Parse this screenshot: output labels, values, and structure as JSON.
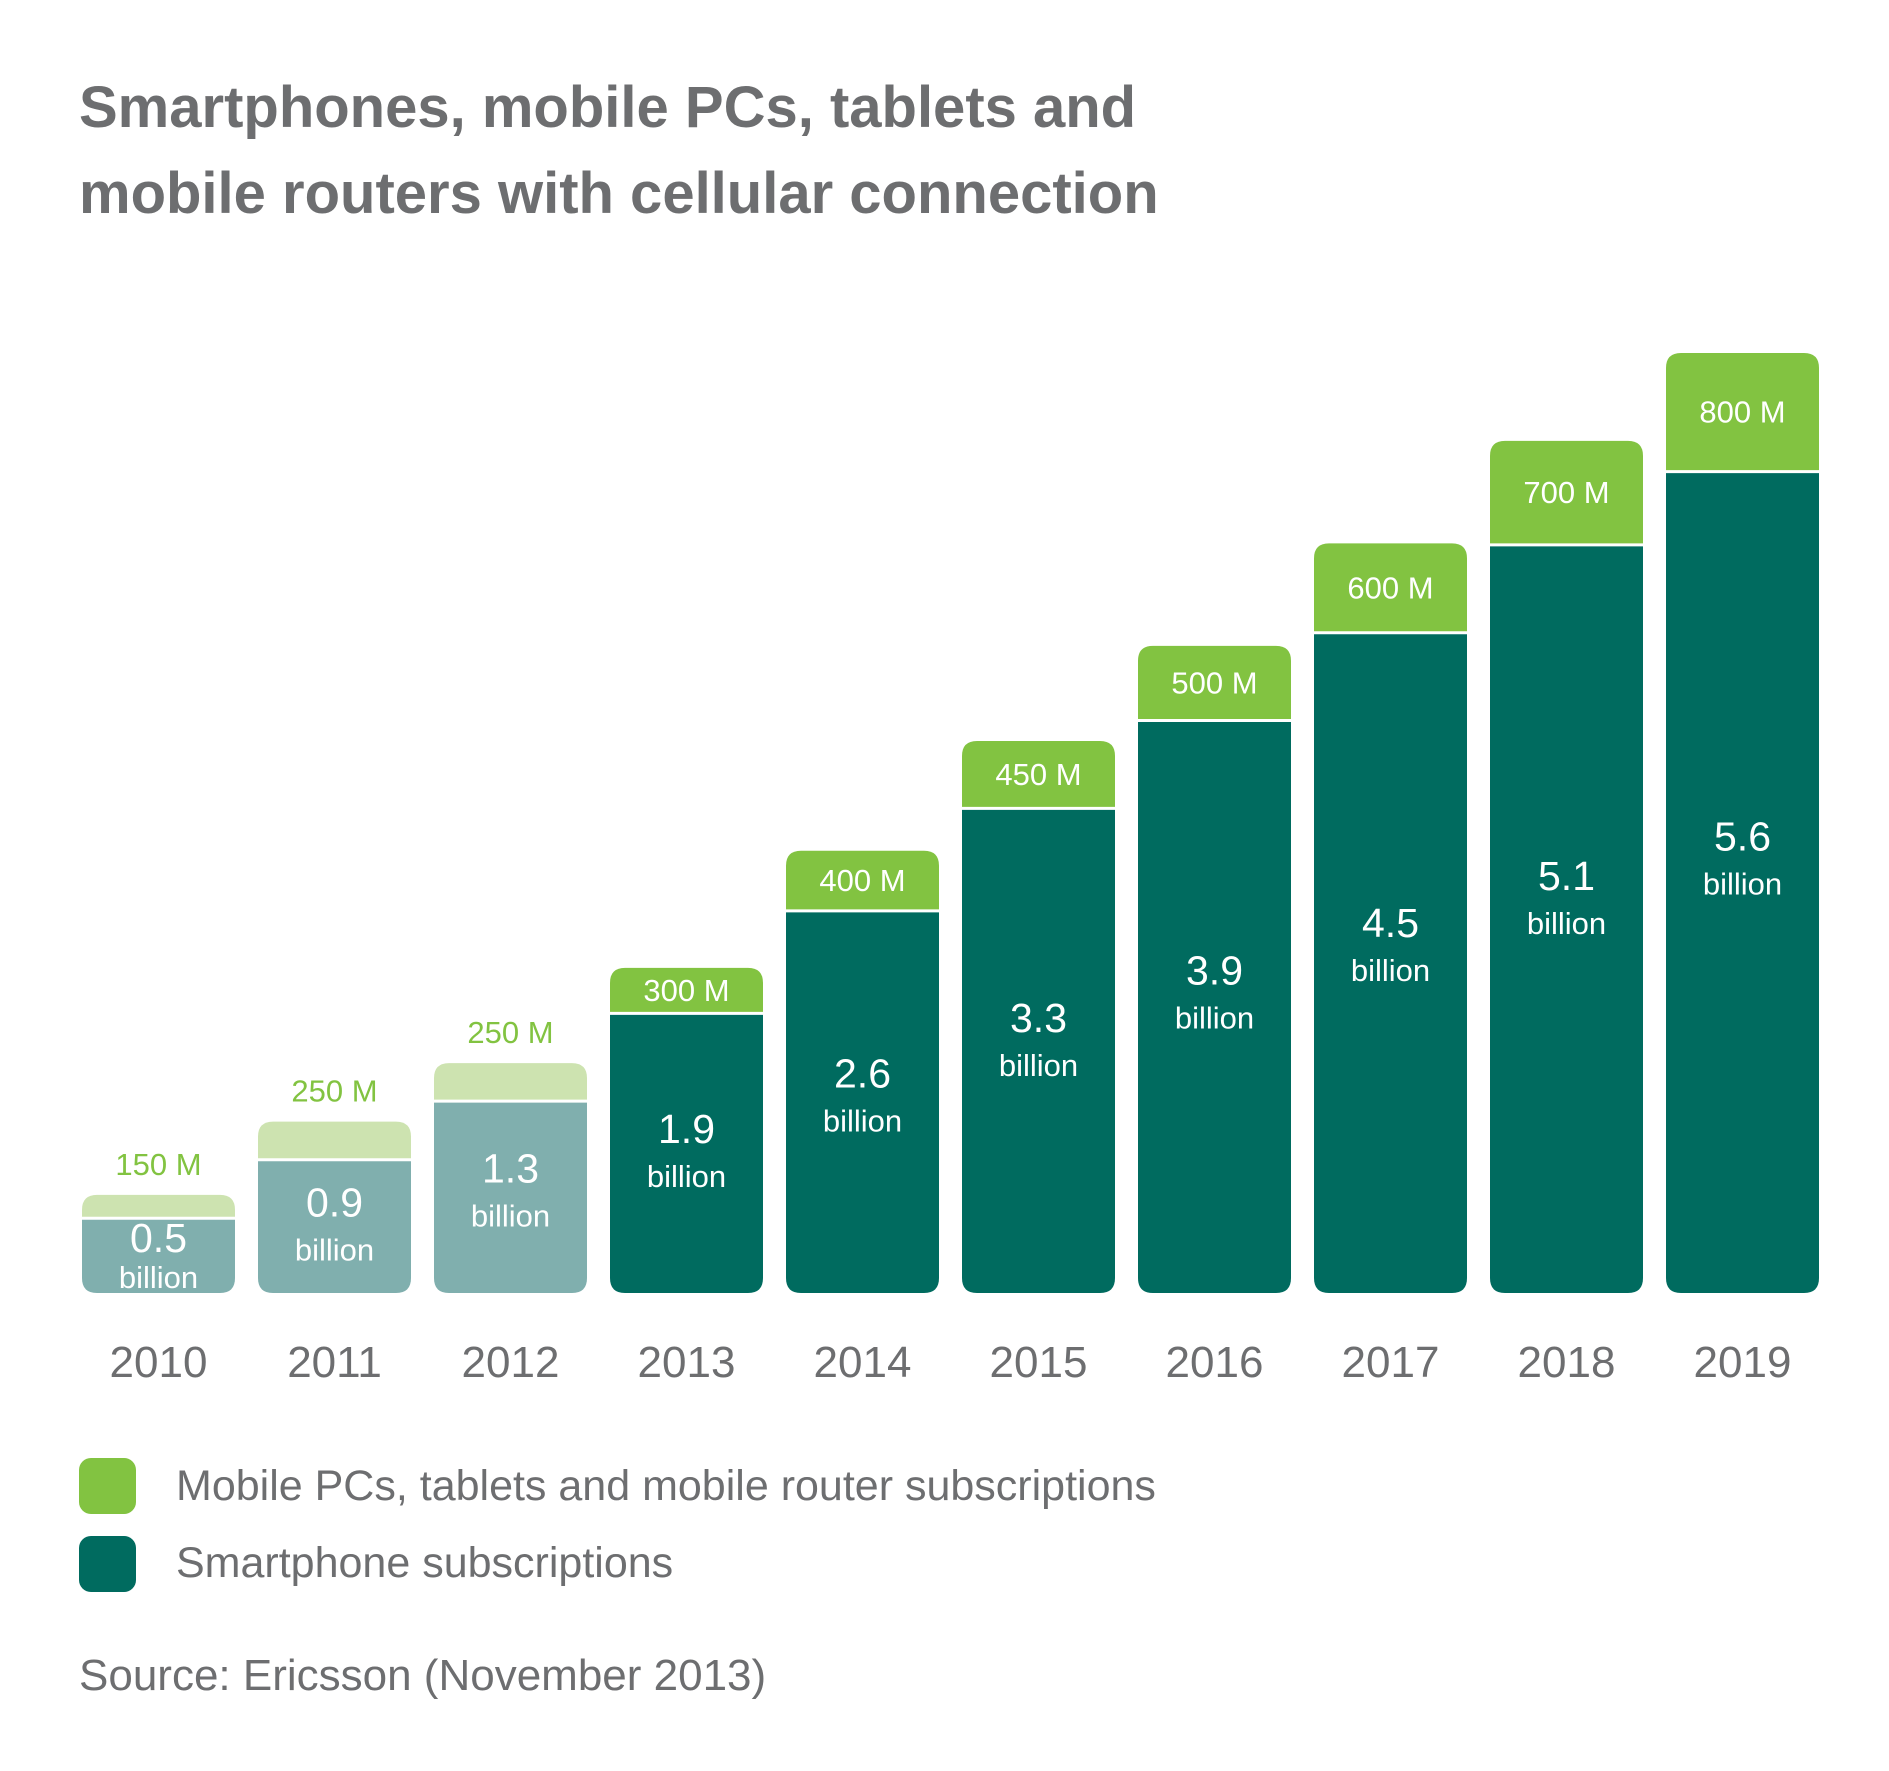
{
  "chart_data": {
    "type": "bar",
    "stacked": true,
    "title_lines": [
      "Smartphones, mobile PCs, tablets and",
      "mobile routers with cellular connection"
    ],
    "categories": [
      "2010",
      "2011",
      "2012",
      "2013",
      "2014",
      "2015",
      "2016",
      "2017",
      "2018",
      "2019"
    ],
    "series": [
      {
        "name": "Smartphone subscriptions",
        "unit": "billion",
        "values": [
          0.5,
          0.9,
          1.3,
          1.9,
          2.6,
          3.3,
          3.9,
          4.5,
          5.1,
          5.6
        ],
        "labels": [
          "0.5",
          "0.9",
          "1.3",
          "1.9",
          "2.6",
          "3.3",
          "3.9",
          "4.5",
          "5.1",
          "5.6"
        ],
        "sublabel": "billion",
        "color": "#006B5F",
        "faded_color": "#80AFAE"
      },
      {
        "name": "Mobile PCs, tablets and mobile router subscriptions",
        "unit": "million",
        "values": [
          150,
          250,
          250,
          300,
          400,
          450,
          500,
          600,
          700,
          800
        ],
        "labels": [
          "150 M",
          "250 M",
          "250 M",
          "300 M",
          "400 M",
          "450 M",
          "500 M",
          "600 M",
          "700 M",
          "800 M"
        ],
        "color": "#82C341",
        "faded_color": "#CDE3B0"
      }
    ],
    "faded_categories": [
      "2010",
      "2011",
      "2012"
    ],
    "grid": false,
    "legend_placement": "bottom-left",
    "source": "Source: Ericsson (November 2013)",
    "text_color": "#6D6E70"
  }
}
